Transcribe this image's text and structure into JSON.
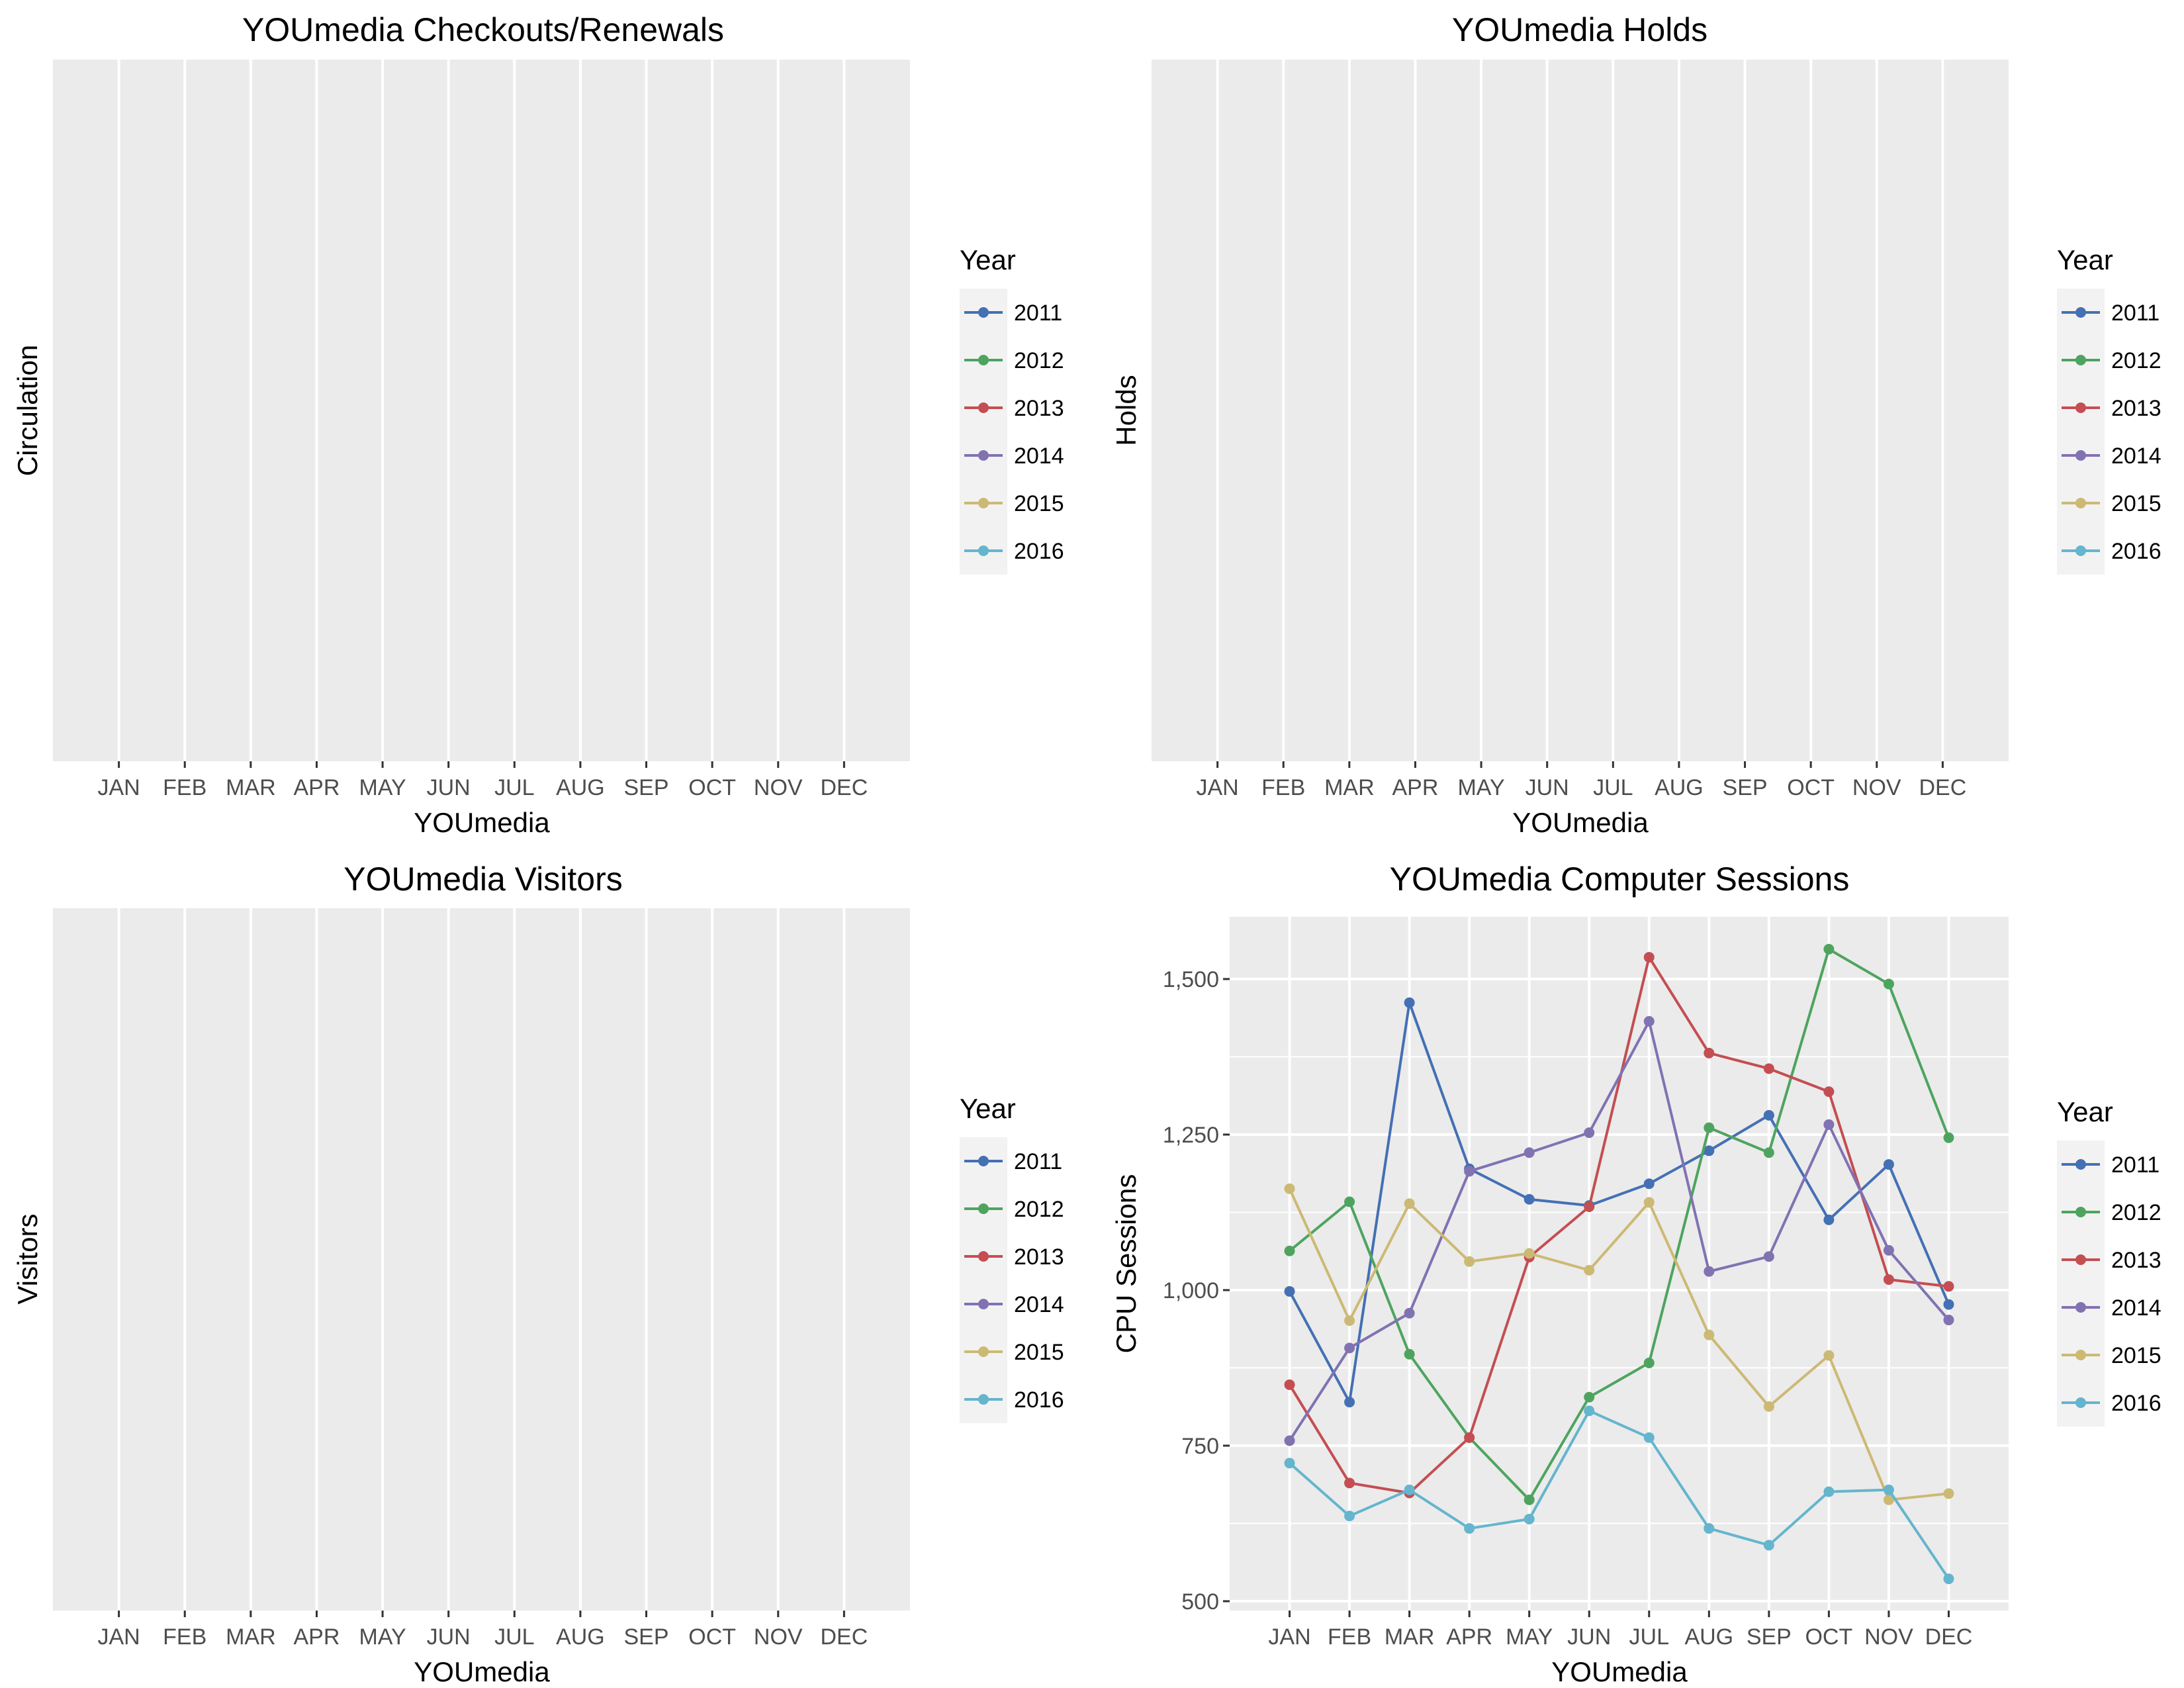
{
  "colors": {
    "panel_background": "#EBEBEB",
    "grid_line": "#FFFFFF",
    "legend_key_background": "#F2F2F2",
    "series": [
      "#4470B4",
      "#4EA45F",
      "#C44E52",
      "#8172B2",
      "#CCB974",
      "#64B5CD"
    ]
  },
  "chart_data": [
    {
      "type": "line",
      "title": "YOUmedia Checkouts/Renewals",
      "xlabel": "YOUmedia",
      "ylabel": "Circulation",
      "categories": [
        "JAN",
        "FEB",
        "MAR",
        "APR",
        "MAY",
        "JUN",
        "JUL",
        "AUG",
        "SEP",
        "OCT",
        "NOV",
        "DEC"
      ],
      "yticks": [],
      "legend": {
        "title": "Year",
        "position": "right",
        "items": [
          "2011",
          "2012",
          "2013",
          "2014",
          "2015",
          "2016"
        ]
      },
      "grid": "x-major",
      "series": []
    },
    {
      "type": "line",
      "title": "YOUmedia Holds",
      "xlabel": "YOUmedia",
      "ylabel": "Holds",
      "categories": [
        "JAN",
        "FEB",
        "MAR",
        "APR",
        "MAY",
        "JUN",
        "JUL",
        "AUG",
        "SEP",
        "OCT",
        "NOV",
        "DEC"
      ],
      "yticks": [],
      "legend": {
        "title": "Year",
        "position": "right",
        "items": [
          "2011",
          "2012",
          "2013",
          "2014",
          "2015",
          "2016"
        ]
      },
      "grid": "x-major",
      "series": []
    },
    {
      "type": "line",
      "title": "YOUmedia Visitors",
      "xlabel": "YOUmedia",
      "ylabel": "Visitors",
      "categories": [
        "JAN",
        "FEB",
        "MAR",
        "APR",
        "MAY",
        "JUN",
        "JUL",
        "AUG",
        "SEP",
        "OCT",
        "NOV",
        "DEC"
      ],
      "yticks": [],
      "legend": {
        "title": "Year",
        "position": "right",
        "items": [
          "2011",
          "2012",
          "2013",
          "2014",
          "2015",
          "2016"
        ]
      },
      "grid": "x-major",
      "series": []
    },
    {
      "type": "line",
      "title": "YOUmedia Computer Sessions",
      "xlabel": "YOUmedia",
      "ylabel": "CPU Sessions",
      "categories": [
        "JAN",
        "FEB",
        "MAR",
        "APR",
        "MAY",
        "JUN",
        "JUL",
        "AUG",
        "SEP",
        "OCT",
        "NOV",
        "DEC"
      ],
      "ylim": [
        485,
        1600
      ],
      "yticks": [
        500,
        750,
        1000,
        1250,
        1500
      ],
      "ytick_labels": [
        "500",
        "750",
        "1,000",
        "1,250",
        "1,500"
      ],
      "legend": {
        "title": "Year",
        "position": "right",
        "items": [
          "2011",
          "2012",
          "2013",
          "2014",
          "2015",
          "2016"
        ]
      },
      "grid": "both",
      "series": [
        {
          "name": "2011",
          "values": [
            998,
            820,
            1462,
            1195,
            1146,
            1136,
            1171,
            1224,
            1281,
            1113,
            1202,
            977
          ]
        },
        {
          "name": "2012",
          "values": [
            1063,
            1142,
            897,
            763,
            663,
            828,
            883,
            1261,
            1221,
            1548,
            1492,
            1245
          ]
        },
        {
          "name": "2013",
          "values": [
            848,
            690,
            674,
            763,
            1053,
            1134,
            1535,
            1381,
            1356,
            1319,
            1017,
            1006
          ]
        },
        {
          "name": "2014",
          "values": [
            758,
            907,
            963,
            1191,
            1221,
            1253,
            1432,
            1030,
            1054,
            1266,
            1064,
            952
          ]
        },
        {
          "name": "2015",
          "values": [
            1163,
            951,
            1139,
            1046,
            1059,
            1032,
            1141,
            928,
            813,
            895,
            663,
            673
          ]
        },
        {
          "name": "2016",
          "values": [
            722,
            637,
            679,
            617,
            632,
            806,
            763,
            617,
            590,
            676,
            679,
            536
          ]
        }
      ]
    }
  ]
}
